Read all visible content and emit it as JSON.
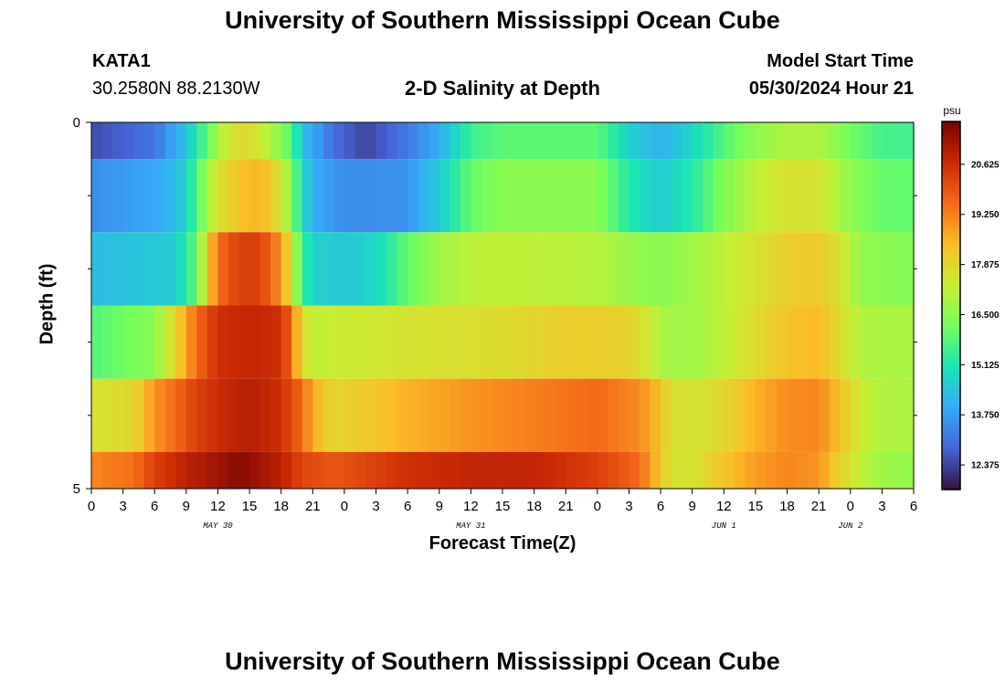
{
  "header": {
    "title": "University of Southern Mississippi Ocean Cube",
    "station_id": "KATA1",
    "coordinates": "30.2580N  88.2130W",
    "subtitle": "2-D Salinity at Depth",
    "model_start_label": "Model Start Time",
    "model_start_value": "05/30/2024 Hour 21"
  },
  "footer": {
    "title": "University of Southern Mississippi Ocean Cube"
  },
  "chart_data": {
    "type": "heatmap",
    "title": "2-D Salinity at Depth",
    "xlabel": "Forecast Time(Z)",
    "ylabel": "Depth (ft)",
    "x_hours_since_may30_00z": [
      0,
      78
    ],
    "y_range_ft": [
      0,
      5
    ],
    "y_tick_labels": [
      {
        "value": 0,
        "label": "0"
      },
      {
        "value": 5,
        "label": "5"
      }
    ],
    "y_minor_ticks": [
      1,
      2,
      3,
      4
    ],
    "x_tick_labels": [
      {
        "hour": 0,
        "label": "0"
      },
      {
        "hour": 3,
        "label": "3"
      },
      {
        "hour": 6,
        "label": "6"
      },
      {
        "hour": 9,
        "label": "9"
      },
      {
        "hour": 12,
        "label": "12"
      },
      {
        "hour": 15,
        "label": "15"
      },
      {
        "hour": 18,
        "label": "18"
      },
      {
        "hour": 21,
        "label": "21"
      },
      {
        "hour": 24,
        "label": "0"
      },
      {
        "hour": 27,
        "label": "3"
      },
      {
        "hour": 30,
        "label": "6"
      },
      {
        "hour": 33,
        "label": "9"
      },
      {
        "hour": 36,
        "label": "12"
      },
      {
        "hour": 39,
        "label": "15"
      },
      {
        "hour": 42,
        "label": "18"
      },
      {
        "hour": 45,
        "label": "21"
      },
      {
        "hour": 48,
        "label": "0"
      },
      {
        "hour": 51,
        "label": "3"
      },
      {
        "hour": 54,
        "label": "6"
      },
      {
        "hour": 57,
        "label": "9"
      },
      {
        "hour": 60,
        "label": "12"
      },
      {
        "hour": 63,
        "label": "15"
      },
      {
        "hour": 66,
        "label": "18"
      },
      {
        "hour": 69,
        "label": "21"
      },
      {
        "hour": 72,
        "label": "0"
      },
      {
        "hour": 75,
        "label": "3"
      },
      {
        "hour": 78,
        "label": "6"
      }
    ],
    "day_labels": [
      {
        "hour": 12,
        "label": "MAY 30"
      },
      {
        "hour": 36,
        "label": "MAY 31"
      },
      {
        "hour": 60,
        "label": "JUN 1"
      },
      {
        "hour": 72,
        "label": "JUN 2"
      }
    ],
    "colorbar": {
      "unit": "psu",
      "min": 11.7,
      "max": 21.8,
      "ticks": [
        12.375,
        13.75,
        15.125,
        16.5,
        17.875,
        19.25,
        20.625
      ],
      "tick_labels": [
        "12.375",
        "13.750",
        "15.125",
        "16.500",
        "17.875",
        "19.250",
        "20.625"
      ],
      "stops": [
        "#30123b",
        "#4662d7",
        "#36aaf9",
        "#1ae4b6",
        "#72fe5e",
        "#c7ef34",
        "#fabf27",
        "#f66b19",
        "#cb2a04",
        "#7a0403"
      ]
    },
    "depth_layers": [
      {
        "depth_top": 0,
        "depth_bottom": 0.5,
        "keyframes": [
          [
            0,
            12.5
          ],
          [
            6,
            13.1
          ],
          [
            9,
            14.4
          ],
          [
            11,
            16.0
          ],
          [
            13,
            17.6
          ],
          [
            15,
            17.8
          ],
          [
            17,
            17.0
          ],
          [
            19,
            15.8
          ],
          [
            20,
            14.4
          ],
          [
            23,
            13.0
          ],
          [
            26,
            12.4
          ],
          [
            30,
            13.2
          ],
          [
            33,
            14.0
          ],
          [
            36,
            15.5
          ],
          [
            39,
            15.9
          ],
          [
            42,
            15.9
          ],
          [
            45,
            15.9
          ],
          [
            48,
            15.9
          ],
          [
            51,
            14.7
          ],
          [
            54,
            14.1
          ],
          [
            57,
            14.8
          ],
          [
            60,
            15.8
          ],
          [
            63,
            16.6
          ],
          [
            66,
            17.0
          ],
          [
            69,
            17.0
          ],
          [
            72,
            16.2
          ],
          [
            75,
            15.6
          ],
          [
            78,
            15.6
          ]
        ]
      },
      {
        "depth_top": 0.5,
        "depth_bottom": 1.5,
        "keyframes": [
          [
            0,
            13.5
          ],
          [
            7,
            14.0
          ],
          [
            9,
            14.7
          ],
          [
            11,
            16.8
          ],
          [
            12,
            17.6
          ],
          [
            13,
            18.0
          ],
          [
            15,
            18.6
          ],
          [
            17,
            18.3
          ],
          [
            18.5,
            17.0
          ],
          [
            20,
            15.0
          ],
          [
            21,
            14.0
          ],
          [
            24,
            13.5
          ],
          [
            30,
            13.6
          ],
          [
            33,
            14.6
          ],
          [
            36,
            16.0
          ],
          [
            39,
            16.5
          ],
          [
            42,
            16.5
          ],
          [
            45,
            16.5
          ],
          [
            48,
            16.5
          ],
          [
            51,
            15.2
          ],
          [
            54,
            14.6
          ],
          [
            57,
            15.2
          ],
          [
            60,
            16.4
          ],
          [
            63,
            17.2
          ],
          [
            66,
            17.6
          ],
          [
            69,
            17.6
          ],
          [
            72,
            16.6
          ],
          [
            75,
            16.0
          ],
          [
            78,
            16.0
          ]
        ]
      },
      {
        "depth_top": 1.5,
        "depth_bottom": 2.5,
        "keyframes": [
          [
            0,
            14.3
          ],
          [
            8,
            14.6
          ],
          [
            10,
            16.0
          ],
          [
            11,
            18.0
          ],
          [
            12,
            19.5
          ],
          [
            14,
            20.3
          ],
          [
            16,
            20.3
          ],
          [
            18,
            19.0
          ],
          [
            19,
            17.6
          ],
          [
            20,
            15.5
          ],
          [
            21,
            14.7
          ],
          [
            24,
            14.5
          ],
          [
            27,
            14.8
          ],
          [
            30,
            16.0
          ],
          [
            33,
            16.8
          ],
          [
            36,
            17.2
          ],
          [
            42,
            17.2
          ],
          [
            46,
            17.1
          ],
          [
            48,
            17.1
          ],
          [
            51,
            16.7
          ],
          [
            54,
            16.5
          ],
          [
            57,
            16.8
          ],
          [
            60,
            17.2
          ],
          [
            63,
            17.6
          ],
          [
            66,
            18.1
          ],
          [
            69,
            18.2
          ],
          [
            71,
            17.6
          ],
          [
            73,
            16.6
          ],
          [
            78,
            16.4
          ]
        ]
      },
      {
        "depth_top": 2.5,
        "depth_bottom": 3.5,
        "keyframes": [
          [
            0,
            15.8
          ],
          [
            6,
            16.5
          ],
          [
            8,
            18.0
          ],
          [
            10,
            19.6
          ],
          [
            12,
            20.6
          ],
          [
            15,
            20.8
          ],
          [
            18,
            20.6
          ],
          [
            19,
            19.5
          ],
          [
            20,
            17.8
          ],
          [
            21,
            17.2
          ],
          [
            24,
            17.4
          ],
          [
            30,
            17.6
          ],
          [
            36,
            17.7
          ],
          [
            40,
            17.8
          ],
          [
            45,
            18.1
          ],
          [
            48,
            18.1
          ],
          [
            51,
            18.0
          ],
          [
            53,
            17.4
          ],
          [
            54,
            16.9
          ],
          [
            57,
            16.8
          ],
          [
            60,
            17.2
          ],
          [
            63,
            17.8
          ],
          [
            66,
            18.3
          ],
          [
            69,
            18.5
          ],
          [
            71,
            17.8
          ],
          [
            73,
            17.0
          ],
          [
            78,
            16.9
          ]
        ]
      },
      {
        "depth_top": 3.5,
        "depth_bottom": 4.5,
        "keyframes": [
          [
            0,
            17.6
          ],
          [
            4,
            17.9
          ],
          [
            6,
            19.0
          ],
          [
            8,
            19.6
          ],
          [
            10,
            20.3
          ],
          [
            13,
            20.8
          ],
          [
            15,
            21.0
          ],
          [
            18,
            20.6
          ],
          [
            20,
            19.6
          ],
          [
            21,
            18.7
          ],
          [
            23,
            17.9
          ],
          [
            27,
            18.3
          ],
          [
            30,
            18.6
          ],
          [
            36,
            19.0
          ],
          [
            42,
            19.3
          ],
          [
            48,
            19.6
          ],
          [
            52,
            19.1
          ],
          [
            54,
            18.4
          ],
          [
            55,
            17.6
          ],
          [
            58,
            17.6
          ],
          [
            60,
            17.9
          ],
          [
            63,
            18.6
          ],
          [
            66,
            19.1
          ],
          [
            69,
            19.2
          ],
          [
            71,
            18.4
          ],
          [
            73,
            17.4
          ],
          [
            75,
            17.0
          ],
          [
            78,
            17.0
          ]
        ]
      },
      {
        "depth_top": 4.5,
        "depth_bottom": 5,
        "keyframes": [
          [
            0,
            19.2
          ],
          [
            4,
            19.5
          ],
          [
            6,
            20.3
          ],
          [
            9,
            20.9
          ],
          [
            12,
            21.3
          ],
          [
            14,
            21.6
          ],
          [
            16,
            21.3
          ],
          [
            18,
            20.9
          ],
          [
            20,
            20.2
          ],
          [
            23,
            19.9
          ],
          [
            27,
            20.3
          ],
          [
            30,
            20.6
          ],
          [
            36,
            20.8
          ],
          [
            42,
            20.8
          ],
          [
            48,
            20.3
          ],
          [
            52,
            19.6
          ],
          [
            54,
            18.3
          ],
          [
            55,
            17.6
          ],
          [
            57,
            17.6
          ],
          [
            60,
            18.3
          ],
          [
            63,
            18.9
          ],
          [
            66,
            19.2
          ],
          [
            69,
            19.0
          ],
          [
            71,
            18.0
          ],
          [
            73,
            17.2
          ],
          [
            75,
            16.8
          ],
          [
            78,
            16.6
          ]
        ]
      }
    ]
  }
}
